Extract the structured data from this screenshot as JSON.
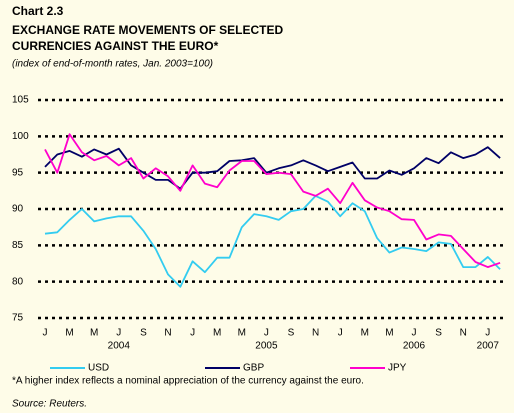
{
  "chart_data": {
    "type": "line",
    "label": "Chart 2.3",
    "title": [
      "EXCHANGE RATE MOVEMENTS OF SELECTED",
      "CURRENCIES AGAINST THE EURO*"
    ],
    "subtitle": "(index of end-of-month rates, Jan. 2003=100)",
    "categories": [
      "J",
      null,
      "M",
      null,
      "M",
      null,
      "J",
      null,
      "S",
      null,
      "N",
      null,
      "J",
      null,
      "M",
      null,
      "M",
      null,
      "J",
      null,
      "S",
      null,
      "N",
      null,
      "J",
      null,
      "M",
      null,
      "M",
      null,
      "J",
      null,
      "S",
      null,
      "N",
      null,
      "J",
      null
    ],
    "year_labels": [
      "2004",
      "2005",
      "2006",
      "2007"
    ],
    "series": [
      {
        "name": "USD",
        "color": "#33ccf0",
        "values": [
          86.6,
          86.8,
          88.5,
          90,
          88.3,
          88.7,
          89,
          89,
          87,
          84.5,
          81,
          79.3,
          82.8,
          81.3,
          83.3,
          83.3,
          87.5,
          89.3,
          89,
          88.5,
          89.7,
          90,
          91.8,
          91,
          89,
          90.8,
          89.7,
          86,
          84,
          84.7,
          84.5,
          84.2,
          85.4,
          85.2,
          82,
          82,
          83.4,
          81.7
        ]
      },
      {
        "name": "GBP",
        "color": "#000066",
        "values": [
          95.8,
          97.5,
          98,
          97.2,
          98.2,
          97.5,
          98.3,
          96,
          95,
          94,
          94,
          92.8,
          95,
          95,
          95.2,
          96.6,
          96.7,
          97,
          95,
          95.6,
          96,
          96.7,
          96,
          95.2,
          95.8,
          96.4,
          94.2,
          94.2,
          95.3,
          94.7,
          95.6,
          97,
          96.3,
          97.8,
          97,
          97.5,
          98.5,
          97
        ]
      },
      {
        "name": "JPY",
        "color": "#ff00cc",
        "values": [
          98.2,
          95,
          100.3,
          97.8,
          96.7,
          97.3,
          96,
          97,
          94.2,
          95.6,
          94.5,
          92.5,
          96,
          93.5,
          93,
          95.3,
          96.6,
          96.6,
          94.8,
          95,
          94.8,
          92.4,
          91.8,
          92.8,
          90.8,
          93.6,
          91.2,
          90.2,
          89.7,
          88.6,
          88.5,
          85.8,
          86.5,
          86.3,
          84.5,
          82.7,
          82,
          82.6
        ]
      }
    ],
    "ylim": [
      75,
      105
    ],
    "yticks": [
      75,
      80,
      85,
      90,
      95,
      100,
      105
    ],
    "grid": true,
    "legend": "bottom",
    "footnote": "*A higher index reflects a nominal appreciation of the currency against the euro.",
    "source": "Source: Reuters."
  }
}
